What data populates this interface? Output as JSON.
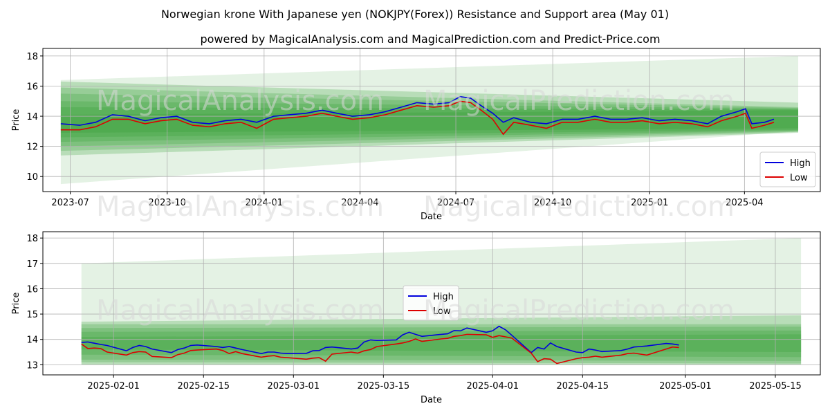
{
  "title": "Norwegian krone With Japanese yen (NOKJPY(Forex)) Resistance and Support area (May 01)",
  "subtitle": "powered by MagicalAnalysis.com and MagicalPrediction.com and Predict-Price.com",
  "watermarks": [
    "MagicalAnalysis.com",
    "MagicalPrediction.com"
  ],
  "colors": {
    "high": "#0000dd",
    "low": "#dd0000",
    "band": "#2e9a2e",
    "grid": "#b0b0b0"
  },
  "chart_data": [
    {
      "type": "line",
      "xlabel": "Date",
      "ylabel": "Price",
      "ylim": [
        9.0,
        18.5
      ],
      "xlim": [
        "2023-06-05",
        "2025-06-12"
      ],
      "yticks": [
        10,
        12,
        14,
        16,
        18
      ],
      "xticks": [
        "2023-07",
        "2023-10",
        "2024-01",
        "2024-04",
        "2024-07",
        "2024-10",
        "2025-01",
        "2025-04"
      ],
      "grid": true,
      "legend": "lower right",
      "band_range": [
        "2023-06-22",
        "2025-05-22"
      ],
      "bands": [
        {
          "lower": [
            9.5,
            13.0
          ],
          "upper": [
            16.4,
            18.0
          ]
        },
        {
          "lower": [
            11.4,
            12.9
          ],
          "upper": [
            16.3,
            14.9
          ]
        },
        {
          "lower": [
            11.7,
            12.95
          ],
          "upper": [
            15.9,
            14.6
          ]
        },
        {
          "lower": [
            12.0,
            13.0
          ],
          "upper": [
            15.5,
            14.55
          ]
        },
        {
          "lower": [
            12.3,
            13.05
          ],
          "upper": [
            15.0,
            14.5
          ]
        },
        {
          "lower": [
            12.6,
            13.1
          ],
          "upper": [
            14.6,
            14.45
          ]
        },
        {
          "lower": [
            12.9,
            13.2
          ],
          "upper": [
            14.1,
            14.4
          ]
        }
      ],
      "series": [
        {
          "name": "High",
          "x": [
            "2023-06-22",
            "2023-07-10",
            "2023-07-25",
            "2023-08-10",
            "2023-08-25",
            "2023-09-10",
            "2023-09-25",
            "2023-10-10",
            "2023-10-25",
            "2023-11-10",
            "2023-11-25",
            "2023-12-10",
            "2023-12-25",
            "2024-01-10",
            "2024-01-25",
            "2024-02-10",
            "2024-02-25",
            "2024-03-10",
            "2024-03-25",
            "2024-04-10",
            "2024-04-25",
            "2024-05-10",
            "2024-05-25",
            "2024-06-10",
            "2024-06-25",
            "2024-07-05",
            "2024-07-15",
            "2024-07-25",
            "2024-08-05",
            "2024-08-15",
            "2024-08-25",
            "2024-09-10",
            "2024-09-25",
            "2024-10-10",
            "2024-10-25",
            "2024-11-10",
            "2024-11-25",
            "2024-12-10",
            "2024-12-25",
            "2025-01-10",
            "2025-01-25",
            "2025-02-10",
            "2025-02-25",
            "2025-03-10",
            "2025-03-25",
            "2025-04-02",
            "2025-04-08",
            "2025-04-20",
            "2025-04-29"
          ],
          "values": [
            13.5,
            13.4,
            13.6,
            14.1,
            14.0,
            13.7,
            13.9,
            14.0,
            13.6,
            13.5,
            13.7,
            13.8,
            13.6,
            14.0,
            14.1,
            14.2,
            14.4,
            14.2,
            14.0,
            14.1,
            14.3,
            14.6,
            14.9,
            14.8,
            14.9,
            15.3,
            15.2,
            14.7,
            14.2,
            13.6,
            13.9,
            13.6,
            13.5,
            13.8,
            13.8,
            14.0,
            13.8,
            13.8,
            13.9,
            13.7,
            13.8,
            13.7,
            13.5,
            14.0,
            14.3,
            14.5,
            13.5,
            13.6,
            13.8
          ]
        },
        {
          "name": "Low",
          "x": [
            "2023-06-22",
            "2023-07-10",
            "2023-07-25",
            "2023-08-10",
            "2023-08-25",
            "2023-09-10",
            "2023-09-25",
            "2023-10-10",
            "2023-10-25",
            "2023-11-10",
            "2023-11-25",
            "2023-12-10",
            "2023-12-25",
            "2024-01-10",
            "2024-01-25",
            "2024-02-10",
            "2024-02-25",
            "2024-03-10",
            "2024-03-25",
            "2024-04-10",
            "2024-04-25",
            "2024-05-10",
            "2024-05-25",
            "2024-06-10",
            "2024-06-25",
            "2024-07-05",
            "2024-07-15",
            "2024-07-25",
            "2024-08-05",
            "2024-08-15",
            "2024-08-25",
            "2024-09-10",
            "2024-09-25",
            "2024-10-10",
            "2024-10-25",
            "2024-11-10",
            "2024-11-25",
            "2024-12-10",
            "2024-12-25",
            "2025-01-10",
            "2025-01-25",
            "2025-02-10",
            "2025-02-25",
            "2025-03-10",
            "2025-03-25",
            "2025-04-02",
            "2025-04-08",
            "2025-04-20",
            "2025-04-29"
          ],
          "values": [
            13.1,
            13.1,
            13.3,
            13.8,
            13.8,
            13.5,
            13.7,
            13.8,
            13.4,
            13.3,
            13.5,
            13.6,
            13.2,
            13.8,
            13.9,
            14.0,
            14.2,
            14.0,
            13.8,
            13.9,
            14.1,
            14.4,
            14.7,
            14.6,
            14.7,
            15.0,
            14.9,
            14.4,
            13.8,
            12.8,
            13.6,
            13.4,
            13.2,
            13.6,
            13.6,
            13.8,
            13.6,
            13.6,
            13.7,
            13.5,
            13.6,
            13.5,
            13.3,
            13.7,
            14.0,
            14.2,
            13.2,
            13.4,
            13.6
          ]
        }
      ]
    },
    {
      "type": "line",
      "xlabel": "Date",
      "ylabel": "Price",
      "ylim": [
        12.6,
        18.25
      ],
      "xlim": [
        "2025-01-21",
        "2025-05-22"
      ],
      "yticks": [
        13,
        14,
        15,
        16,
        17,
        18
      ],
      "xticks": [
        "2025-02-01",
        "2025-02-15",
        "2025-03-01",
        "2025-03-15",
        "2025-04-01",
        "2025-04-15",
        "2025-05-01",
        "2025-05-15"
      ],
      "grid": true,
      "legend": "center",
      "band_range": [
        "2025-01-27",
        "2025-05-19"
      ],
      "bands": [
        {
          "lower": [
            13.0,
            13.0
          ],
          "upper": [
            17.0,
            18.0
          ]
        },
        {
          "lower": [
            13.0,
            13.0
          ],
          "upper": [
            14.7,
            14.95
          ]
        },
        {
          "lower": [
            13.1,
            13.05
          ],
          "upper": [
            14.6,
            14.6
          ]
        },
        {
          "lower": [
            13.2,
            13.15
          ],
          "upper": [
            14.45,
            14.5
          ]
        },
        {
          "lower": [
            13.4,
            13.3
          ],
          "upper": [
            14.3,
            14.35
          ]
        },
        {
          "lower": [
            13.6,
            13.5
          ],
          "upper": [
            14.1,
            14.2
          ]
        }
      ],
      "series": [
        {
          "name": "High",
          "x": [
            "2025-01-27",
            "2025-01-28",
            "2025-01-29",
            "2025-01-30",
            "2025-01-31",
            "2025-02-03",
            "2025-02-04",
            "2025-02-05",
            "2025-02-06",
            "2025-02-07",
            "2025-02-10",
            "2025-02-11",
            "2025-02-12",
            "2025-02-13",
            "2025-02-14",
            "2025-02-17",
            "2025-02-18",
            "2025-02-19",
            "2025-02-20",
            "2025-02-21",
            "2025-02-24",
            "2025-02-25",
            "2025-02-26",
            "2025-02-27",
            "2025-02-28",
            "2025-03-03",
            "2025-03-04",
            "2025-03-05",
            "2025-03-06",
            "2025-03-07",
            "2025-03-10",
            "2025-03-11",
            "2025-03-12",
            "2025-03-13",
            "2025-03-14",
            "2025-03-17",
            "2025-03-18",
            "2025-03-19",
            "2025-03-20",
            "2025-03-21",
            "2025-03-24",
            "2025-03-25",
            "2025-03-26",
            "2025-03-27",
            "2025-03-28",
            "2025-03-31",
            "2025-04-01",
            "2025-04-02",
            "2025-04-03",
            "2025-04-04",
            "2025-04-07",
            "2025-04-08",
            "2025-04-09",
            "2025-04-10",
            "2025-04-11",
            "2025-04-14",
            "2025-04-15",
            "2025-04-16",
            "2025-04-17",
            "2025-04-18",
            "2025-04-21",
            "2025-04-22",
            "2025-04-23",
            "2025-04-24",
            "2025-04-25",
            "2025-04-28",
            "2025-04-29",
            "2025-04-30"
          ],
          "values": [
            13.88,
            13.9,
            13.85,
            13.8,
            13.76,
            13.55,
            13.68,
            13.76,
            13.72,
            13.62,
            13.48,
            13.6,
            13.66,
            13.76,
            13.78,
            13.72,
            13.68,
            13.72,
            13.66,
            13.6,
            13.44,
            13.5,
            13.5,
            13.46,
            13.44,
            13.45,
            13.55,
            13.56,
            13.68,
            13.7,
            13.62,
            13.66,
            13.9,
            13.98,
            13.96,
            13.98,
            14.18,
            14.28,
            14.2,
            14.12,
            14.2,
            14.22,
            14.35,
            14.34,
            14.45,
            14.28,
            14.34,
            14.52,
            14.38,
            14.16,
            13.48,
            13.68,
            13.62,
            13.86,
            13.72,
            13.5,
            13.48,
            13.62,
            13.58,
            13.52,
            13.56,
            13.62,
            13.7,
            13.72,
            13.74,
            13.84,
            13.82,
            13.78
          ]
        },
        {
          "name": "Low",
          "x": [
            "2025-01-27",
            "2025-01-28",
            "2025-01-29",
            "2025-01-30",
            "2025-01-31",
            "2025-02-03",
            "2025-02-04",
            "2025-02-05",
            "2025-02-06",
            "2025-02-07",
            "2025-02-10",
            "2025-02-11",
            "2025-02-12",
            "2025-02-13",
            "2025-02-14",
            "2025-02-17",
            "2025-02-18",
            "2025-02-19",
            "2025-02-20",
            "2025-02-21",
            "2025-02-24",
            "2025-02-25",
            "2025-02-26",
            "2025-02-27",
            "2025-02-28",
            "2025-03-03",
            "2025-03-04",
            "2025-03-05",
            "2025-03-06",
            "2025-03-07",
            "2025-03-10",
            "2025-03-11",
            "2025-03-12",
            "2025-03-13",
            "2025-03-14",
            "2025-03-17",
            "2025-03-18",
            "2025-03-19",
            "2025-03-20",
            "2025-03-21",
            "2025-03-24",
            "2025-03-25",
            "2025-03-26",
            "2025-03-27",
            "2025-03-28",
            "2025-03-31",
            "2025-04-01",
            "2025-04-02",
            "2025-04-03",
            "2025-04-04",
            "2025-04-07",
            "2025-04-08",
            "2025-04-09",
            "2025-04-10",
            "2025-04-11",
            "2025-04-14",
            "2025-04-15",
            "2025-04-16",
            "2025-04-17",
            "2025-04-18",
            "2025-04-21",
            "2025-04-22",
            "2025-04-23",
            "2025-04-24",
            "2025-04-25",
            "2025-04-28",
            "2025-04-29",
            "2025-04-30"
          ],
          "values": [
            13.82,
            13.64,
            13.66,
            13.64,
            13.5,
            13.38,
            13.48,
            13.52,
            13.5,
            13.33,
            13.28,
            13.4,
            13.46,
            13.56,
            13.58,
            13.62,
            13.56,
            13.44,
            13.52,
            13.44,
            13.3,
            13.34,
            13.36,
            13.3,
            13.28,
            13.22,
            13.26,
            13.28,
            13.14,
            13.42,
            13.5,
            13.46,
            13.55,
            13.6,
            13.72,
            13.82,
            13.86,
            13.92,
            14.02,
            13.92,
            14.02,
            14.04,
            14.12,
            14.15,
            14.2,
            14.18,
            14.08,
            14.15,
            14.1,
            14.05,
            13.46,
            13.12,
            13.24,
            13.22,
            13.05,
            13.24,
            13.28,
            13.3,
            13.34,
            13.3,
            13.38,
            13.44,
            13.46,
            13.42,
            13.38,
            13.62,
            13.7,
            13.68
          ]
        }
      ]
    }
  ]
}
